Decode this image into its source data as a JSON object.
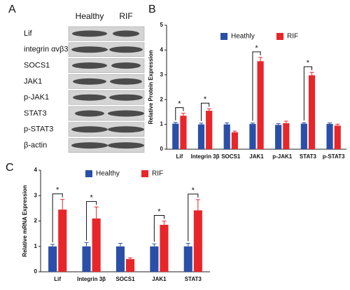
{
  "blot": {
    "label": "A",
    "columns": [
      "Healthy",
      "RIF"
    ],
    "rows": [
      "Lif",
      "integrin αvβ3",
      "SOCS1",
      "JAK1",
      "p-JAK1",
      "STAT3",
      "p-STAT3",
      "β-actin"
    ]
  },
  "chart_data": [
    {
      "type": "bar",
      "label": "B",
      "y_label": "Relative Protein Expression",
      "categories": [
        "Lif",
        "Integrin 3β",
        "SOCS1",
        "JAK1",
        "p-JAK1",
        "STAT3",
        "p-STAT3"
      ],
      "series": [
        {
          "name": "Heathly",
          "color": "#2a4fa8",
          "values": [
            1.03,
            1.0,
            1.0,
            1.02,
            0.98,
            1.03,
            1.02
          ],
          "errors": [
            0.05,
            0.05,
            0.06,
            0.04,
            0.05,
            0.04,
            0.04
          ]
        },
        {
          "name": "RIF",
          "color": "#e8262a",
          "values": [
            1.35,
            1.55,
            0.68,
            3.55,
            1.05,
            2.98,
            0.95
          ],
          "errors": [
            0.1,
            0.08,
            0.05,
            0.15,
            0.08,
            0.12,
            0.06
          ]
        }
      ],
      "significant": [
        true,
        true,
        false,
        true,
        false,
        true,
        false
      ],
      "significance_label": "*",
      "ylim": [
        0,
        5
      ],
      "yticks": [
        0,
        1,
        2,
        3,
        4,
        5
      ]
    },
    {
      "type": "bar",
      "label": "C",
      "y_label": "Relative mRNA Expression",
      "categories": [
        "Lif",
        "Integrin 3β",
        "SOCS1",
        "JAK1",
        "STAT3"
      ],
      "series": [
        {
          "name": "Healthy",
          "color": "#2a4fa8",
          "values": [
            1.0,
            1.0,
            1.0,
            1.0,
            1.0
          ],
          "errors": [
            0.08,
            0.15,
            0.12,
            0.1,
            0.12
          ]
        },
        {
          "name": "RIF",
          "color": "#e8262a",
          "values": [
            2.45,
            2.1,
            0.5,
            1.85,
            2.42
          ],
          "errors": [
            0.4,
            0.45,
            0.05,
            0.15,
            0.42
          ]
        }
      ],
      "significant": [
        true,
        true,
        false,
        true,
        true
      ],
      "significance_label": "*",
      "ylim": [
        0,
        4
      ],
      "yticks": [
        0,
        1,
        2,
        3,
        4
      ]
    }
  ]
}
